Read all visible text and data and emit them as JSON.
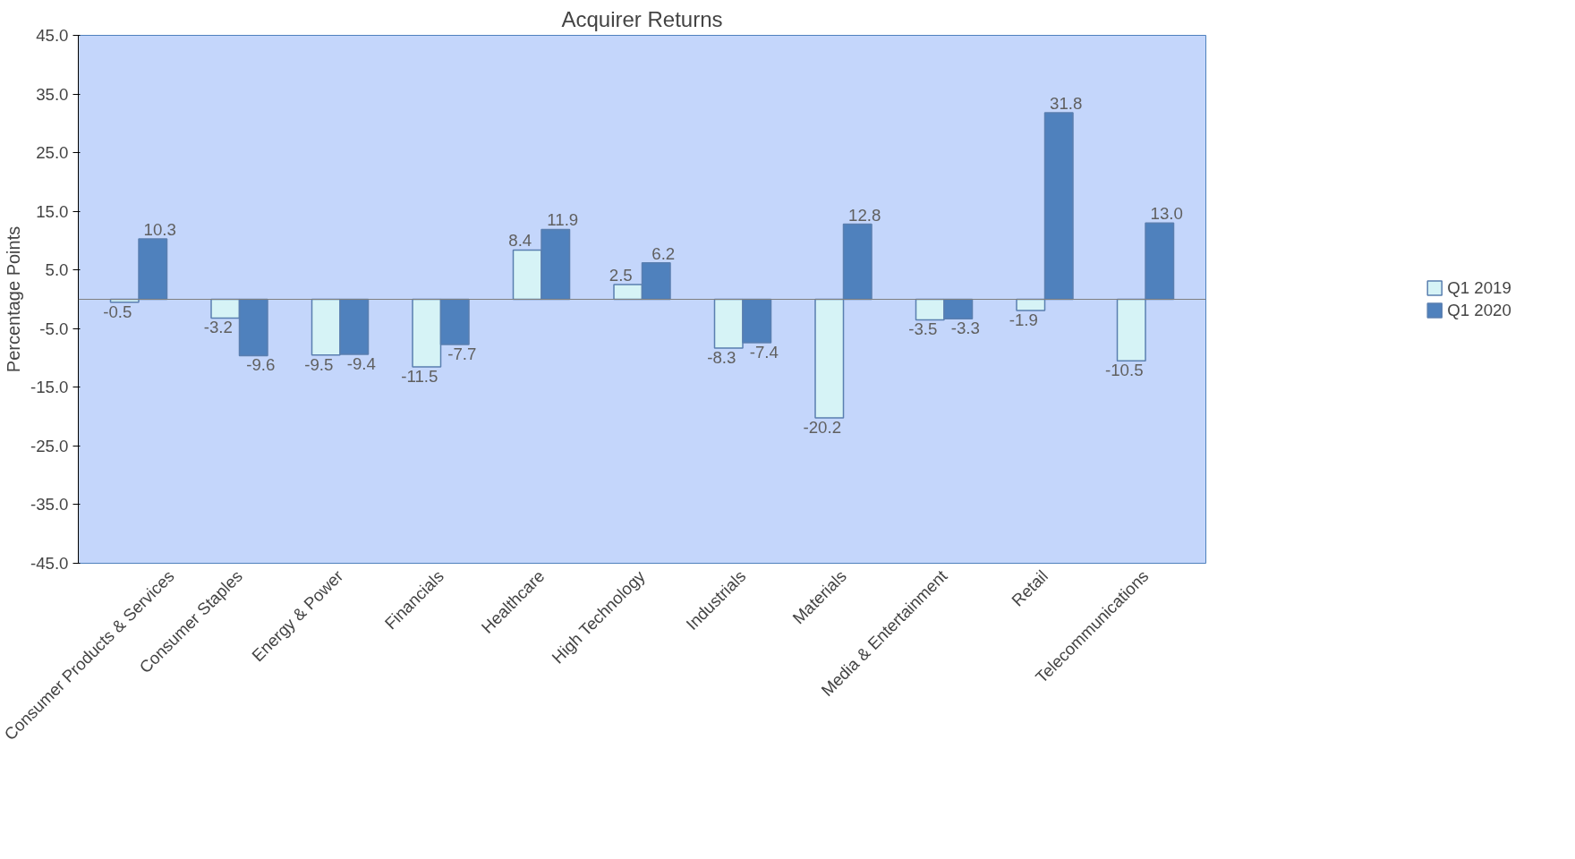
{
  "chart_data": {
    "type": "bar",
    "title": "Acquirer Returns",
    "ylabel": "Percentage Points",
    "categories": [
      "Consumer Products & Services",
      "Consumer Staples",
      "Energy & Power",
      "Financials",
      "Healthcare",
      "High Technology",
      "Industrials",
      "Materials",
      "Media & Entertainment",
      "Retail",
      "Telecommunications"
    ],
    "series": [
      {
        "name": "Q1 2019",
        "color": "#d6f3f6",
        "values": [
          -0.5,
          -3.2,
          -9.5,
          -11.5,
          8.4,
          2.5,
          -8.3,
          -20.2,
          -3.5,
          -1.9,
          -10.5
        ],
        "value_labels": [
          "-0.5",
          "-3.2",
          "-9.5",
          "-11.5",
          "8.4",
          "2.5",
          "-8.3",
          "-20.2",
          "-3.5",
          "-1.9",
          "-10.5"
        ]
      },
      {
        "name": "Q1 2020",
        "color": "#4f81bd",
        "values": [
          10.3,
          -9.6,
          -9.4,
          -7.7,
          11.9,
          6.2,
          -7.4,
          12.8,
          -3.3,
          31.8,
          13.0
        ],
        "value_labels": [
          "10.3",
          "-9.6",
          "-9.4",
          "-7.7",
          "11.9",
          "6.2",
          "-7.4",
          "12.8",
          "-3.3",
          "31.8",
          "13.0"
        ]
      }
    ],
    "ylim": [
      -45,
      45
    ],
    "yticks": [
      {
        "value": -45,
        "label": "-45.0"
      },
      {
        "value": -35,
        "label": "-35.0"
      },
      {
        "value": -25,
        "label": "-25.0"
      },
      {
        "value": -15,
        "label": "-15.0"
      },
      {
        "value": -5,
        "label": "-5.0"
      },
      {
        "value": 5,
        "label": "5.0"
      },
      {
        "value": 15,
        "label": "15.0"
      },
      {
        "value": 25,
        "label": "25.0"
      },
      {
        "value": 35,
        "label": "35.0"
      },
      {
        "value": 45,
        "label": "45.0"
      }
    ],
    "data_labels": true,
    "grid": false,
    "legend": "right"
  }
}
